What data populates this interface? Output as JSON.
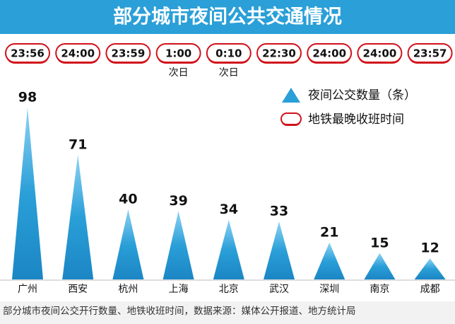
{
  "chart_data": {
    "type": "spike",
    "title": "部分城市夜间公共交通情况",
    "categories": [
      "广州",
      "西安",
      "杭州",
      "上海",
      "北京",
      "武汉",
      "深圳",
      "南京",
      "成都"
    ],
    "series": [
      {
        "name": "夜间公交数量（条）",
        "color": "#2a9fd8",
        "values": [
          98,
          71,
          40,
          39,
          34,
          33,
          21,
          15,
          12
        ]
      },
      {
        "name": "地铁最晚收班时间",
        "color": "#d0121b",
        "labels": [
          "23:56",
          "24:00",
          "23:59",
          "1:00",
          "0:10",
          "22:30",
          "24:00",
          "24:00",
          "23:57"
        ],
        "notes": [
          null,
          null,
          null,
          "次日",
          "次日",
          null,
          null,
          null,
          null
        ]
      }
    ],
    "footer": "部分城市夜间公交开行数量、地铁收班时间，数据来源：媒体公开报道、地方统计局"
  }
}
